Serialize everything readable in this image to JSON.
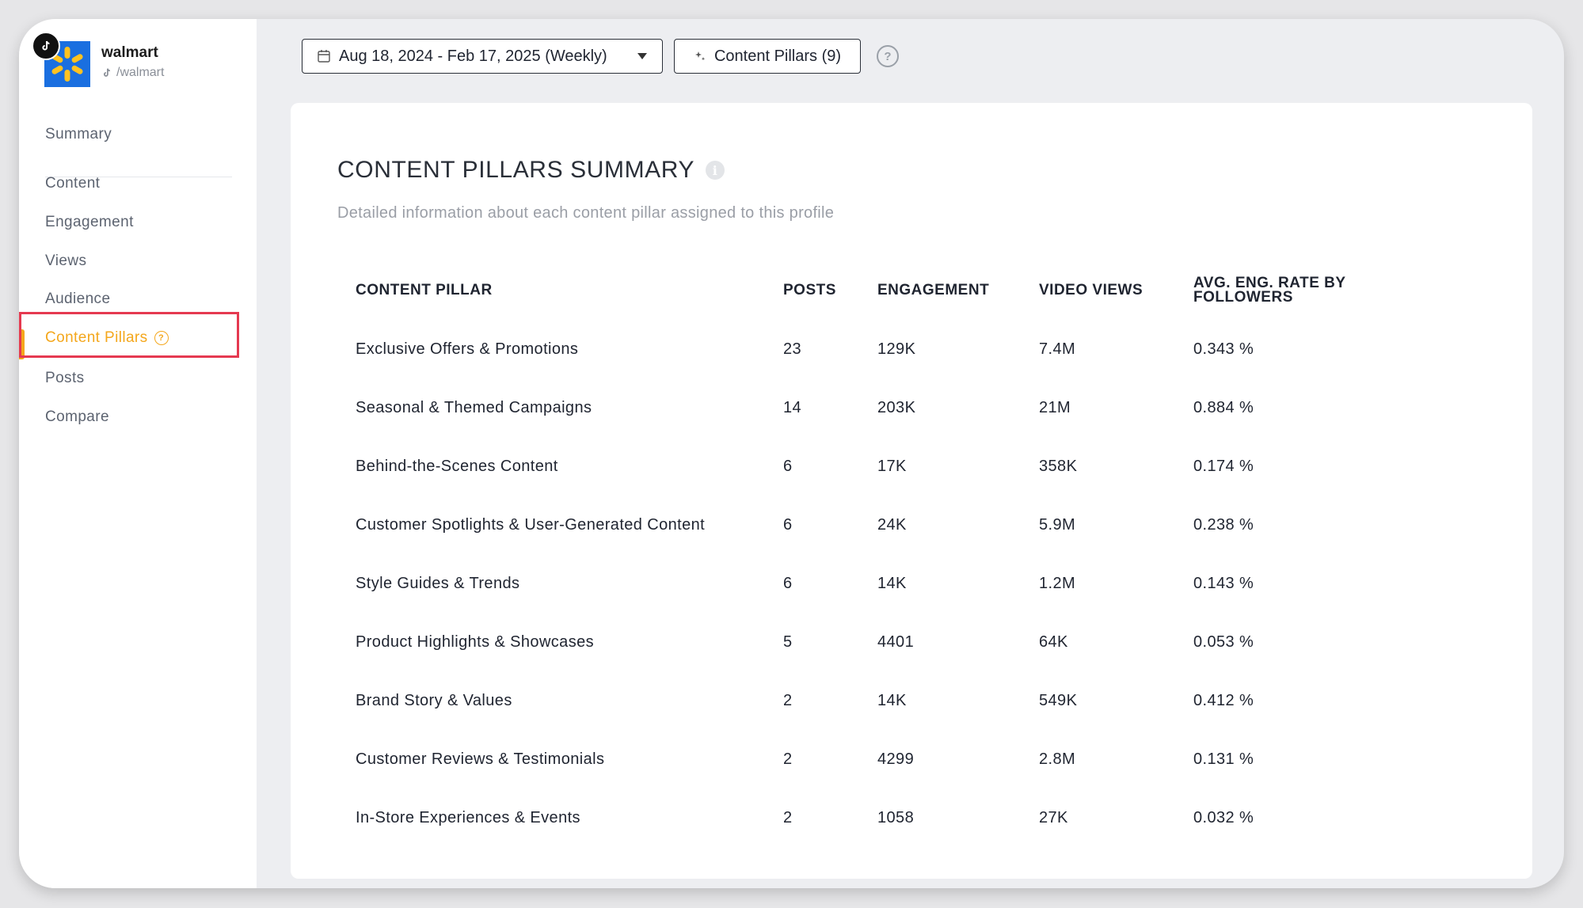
{
  "profile": {
    "name": "walmart",
    "handle": "/walmart",
    "brand_color": "#1a6fe0",
    "spark_color": "#ffc220",
    "logo_icon": "walmart-spark-icon",
    "platform_icon": "tiktok-icon"
  },
  "nav": {
    "items": [
      {
        "label": "Summary"
      },
      {
        "label": "Content"
      },
      {
        "label": "Engagement"
      },
      {
        "label": "Views"
      },
      {
        "label": "Audience"
      },
      {
        "label": "Content Pillars",
        "active": true
      },
      {
        "label": "Posts"
      },
      {
        "label": "Compare"
      }
    ],
    "active_color": "#f4a71c",
    "highlight_color": "#e53950"
  },
  "toolbar": {
    "date_range": "Aug 18, 2024 - Feb 17, 2025 (Weekly)",
    "pillars_button": "Content Pillars (9)",
    "help": "?"
  },
  "card": {
    "title": "CONTENT PILLARS SUMMARY",
    "subtitle": "Detailed information about each content pillar assigned to this profile"
  },
  "table": {
    "headers": [
      "CONTENT PILLAR",
      "POSTS",
      "ENGAGEMENT",
      "VIDEO VIEWS",
      "AVG. ENG. RATE BY FOLLOWERS"
    ],
    "rows": [
      [
        "Exclusive Offers & Promotions",
        "23",
        "129K",
        "7.4M",
        "0.343 %"
      ],
      [
        "Seasonal & Themed Campaigns",
        "14",
        "203K",
        "21M",
        "0.884 %"
      ],
      [
        "Behind-the-Scenes Content",
        "6",
        "17K",
        "358K",
        "0.174 %"
      ],
      [
        "Customer Spotlights & User-Generated Content",
        "6",
        "24K",
        "5.9M",
        "0.238 %"
      ],
      [
        "Style Guides & Trends",
        "6",
        "14K",
        "1.2M",
        "0.143 %"
      ],
      [
        "Product Highlights & Showcases",
        "5",
        "4401",
        "64K",
        "0.053 %"
      ],
      [
        "Brand Story & Values",
        "2",
        "14K",
        "549K",
        "0.412 %"
      ],
      [
        "Customer Reviews & Testimonials",
        "2",
        "4299",
        "2.8M",
        "0.131 %"
      ],
      [
        "In-Store Experiences & Events",
        "2",
        "1058",
        "27K",
        "0.032 %"
      ]
    ]
  }
}
